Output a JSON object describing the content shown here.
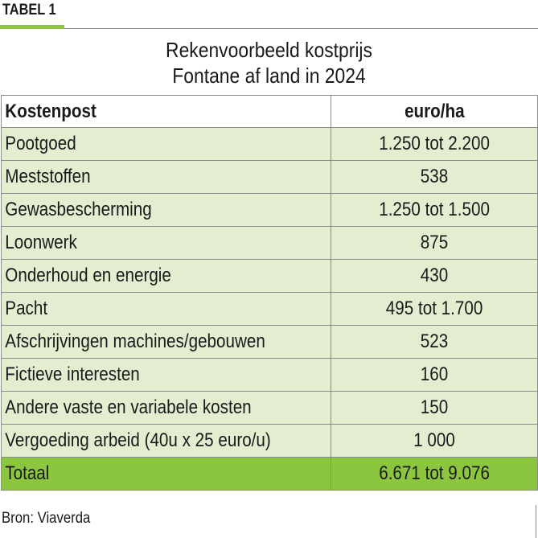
{
  "header": {
    "label": "TABEL 1",
    "title_line1": "Rekenvoorbeeld kostprijs",
    "title_line2": "Fontane af land in 2024"
  },
  "table": {
    "columns": [
      "Kostenpost",
      "euro/ha"
    ],
    "rows": [
      {
        "post": "Pootgoed",
        "value": "1.250 tot 2.200"
      },
      {
        "post": "Meststoffen",
        "value": "538"
      },
      {
        "post": "Gewasbescherming",
        "value": "1.250 tot 1.500"
      },
      {
        "post": "Loonwerk",
        "value": "875"
      },
      {
        "post": "Onderhoud en energie",
        "value": "430"
      },
      {
        "post": "Pacht",
        "value": "495 tot 1.700"
      },
      {
        "post": "Afschrijvingen machines/gebouwen",
        "value": "523"
      },
      {
        "post": "Fictieve interesten",
        "value": "160"
      },
      {
        "post": "Andere vaste en variabele kosten",
        "value": "150"
      },
      {
        "post": "Vergoeding arbeid (40u x 25 euro/u)",
        "value": "1 000"
      }
    ],
    "total": {
      "post": "Totaal",
      "value": "6.671 tot 9.076"
    }
  },
  "footer": {
    "source": "Bron: Viaverda"
  },
  "colors": {
    "accent_green": "#8cc63f",
    "row_light_green": "#e3eed0",
    "border_gray": "#8a8a8a"
  }
}
